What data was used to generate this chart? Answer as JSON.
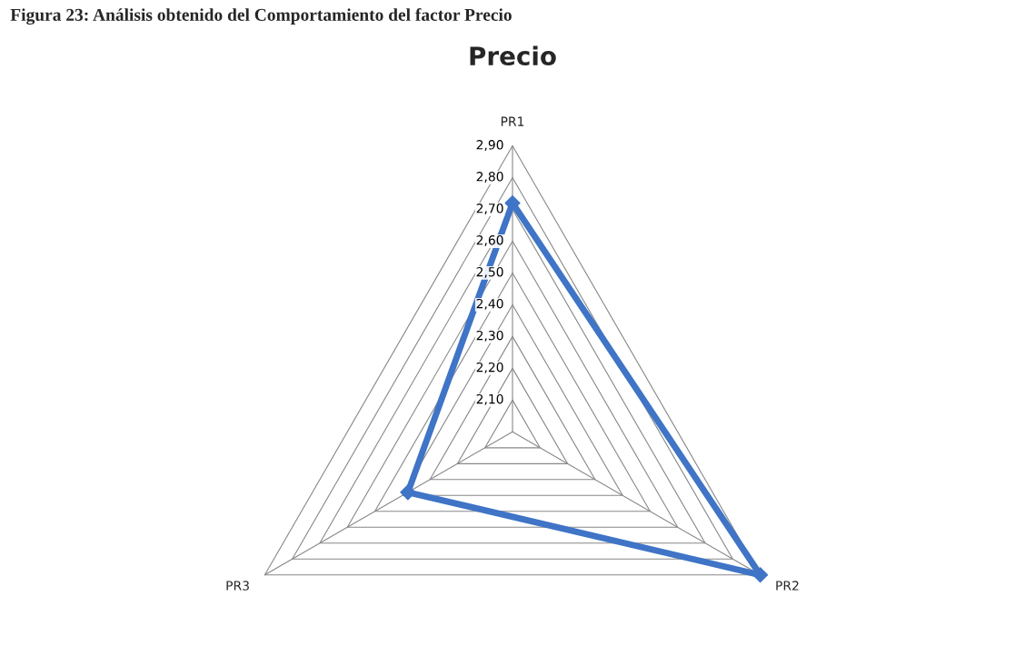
{
  "chart_data": {
    "type": "radar",
    "title": "Precio",
    "annotations": [
      "Figura 23: Análisis obtenido del Comportamiento del factor Precio"
    ],
    "categories": [
      "PR1",
      "PR2",
      "PR3"
    ],
    "series": [
      {
        "color": "#3f74c6",
        "values": [
          2.72,
          2.9,
          2.38
        ]
      }
    ],
    "ylim": [
      2.0,
      2.9
    ],
    "yticks": [
      {
        "value": 2.1,
        "label": "2,10"
      },
      {
        "value": 2.2,
        "label": "2,20"
      },
      {
        "value": 2.3,
        "label": "2,30"
      },
      {
        "value": 2.4,
        "label": "2,40"
      },
      {
        "value": 2.5,
        "label": "2,50"
      },
      {
        "value": 2.6,
        "label": "2,60"
      },
      {
        "value": 2.7,
        "label": "2,70"
      },
      {
        "value": 2.8,
        "label": "2,80"
      },
      {
        "value": 2.9,
        "label": "2,90"
      }
    ],
    "marker": "diamond",
    "grid": true
  }
}
